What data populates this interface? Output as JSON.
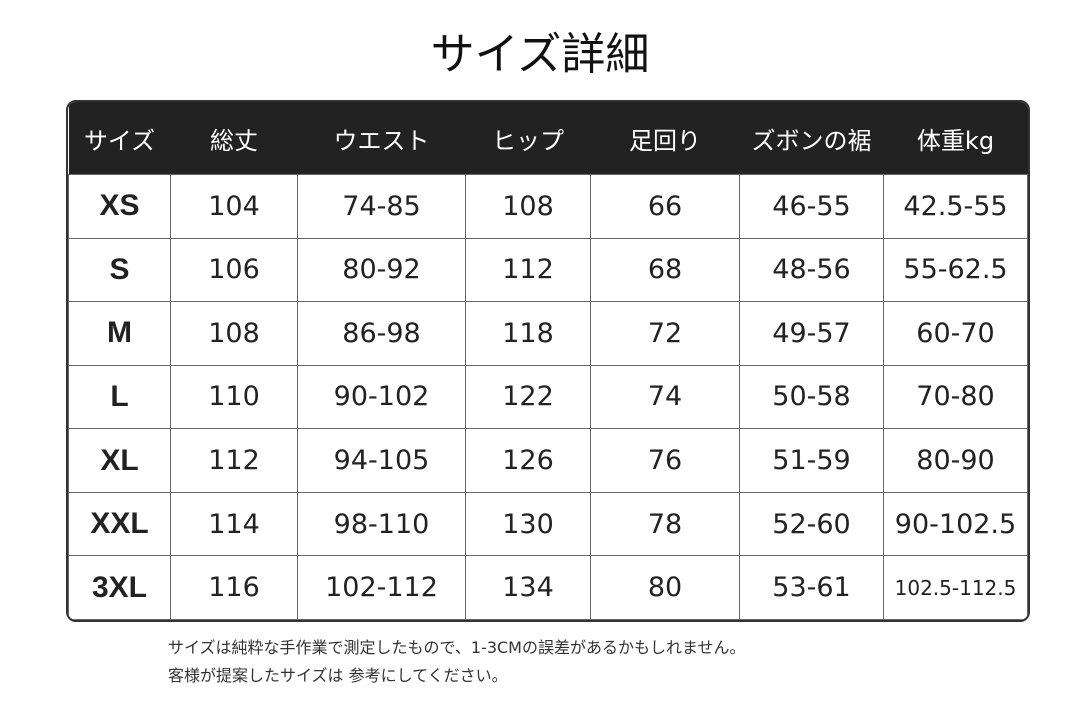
{
  "title": "サイズ詳細",
  "headers": [
    "サイズ",
    "総丈",
    "ウエスト",
    "ヒップ",
    "足回り",
    "ズボンの裾",
    "体重kg"
  ],
  "rows": [
    [
      "XS",
      "104",
      "74-85",
      "108",
      "66",
      "46-55",
      "42.5-55"
    ],
    [
      "S",
      "106",
      "80-92",
      "112",
      "68",
      "48-56",
      "55-62.5"
    ],
    [
      "M",
      "108",
      "86-98",
      "118",
      "72",
      "49-57",
      "60-70"
    ],
    [
      "L",
      "110",
      "90-102",
      "122",
      "74",
      "50-58",
      "70-80"
    ],
    [
      "XL",
      "112",
      "94-105",
      "126",
      "76",
      "51-59",
      "80-90"
    ],
    [
      "XXL",
      "114",
      "98-110",
      "130",
      "78",
      "52-60",
      "90-102.5"
    ],
    [
      "3XL",
      "116",
      "102-112",
      "134",
      "80",
      "53-61",
      "102.5-112.5"
    ]
  ],
  "notes": [
    "サイズは純粋な手作業で測定したもので、1-3CMの誤差があるかもしれません。",
    "客様が提案したサイズは 参考にしてください。"
  ]
}
